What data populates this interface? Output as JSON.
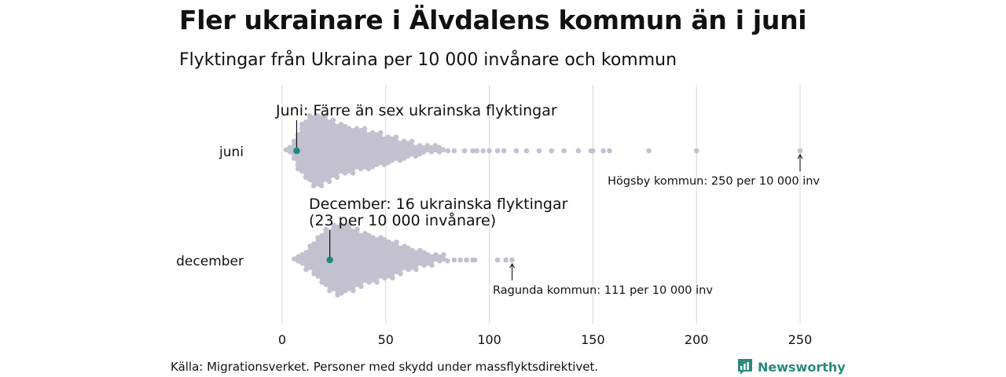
{
  "title": "Fler ukrainare i Älvdalens kommun än i juni",
  "subtitle": "Flyktingar från Ukraina per 10 000 invånare och kommun",
  "source": "Källa: Migrationsverket. Personer med skydd under massflyktsdirektivet.",
  "brand": "Newsworthy",
  "colors": {
    "dot": "#c3c1d0",
    "highlight": "#1f8a78",
    "grid": "#d6d6d6",
    "brand": "#2a8a7c"
  },
  "chart_data": {
    "type": "scatter",
    "subtype": "beeswarm",
    "xlim": [
      0,
      250
    ],
    "xticks": [
      "0",
      "50",
      "100",
      "150",
      "200",
      "250"
    ],
    "rows": [
      {
        "label": "juni",
        "highlight": {
          "value": 7
        },
        "annotation": {
          "lines": [
            "Juni: Färre än sex ukrainska flyktingar"
          ]
        },
        "max_point": {
          "value": 250,
          "label": "Högsby kommun: 250 per 10 000 inv"
        },
        "outliers": [
          80,
          83,
          88,
          92,
          94,
          97,
          100,
          104,
          107,
          113,
          118,
          124,
          130,
          136,
          143,
          149,
          150,
          155,
          158,
          177,
          200,
          250
        ]
      },
      {
        "label": "december",
        "highlight": {
          "value": 23
        },
        "annotation": {
          "lines": [
            "December: 16 ukrainska flyktingar",
            "(23 per 10 000 invånare)"
          ]
        },
        "max_point": {
          "value": 111,
          "label": "Ragunda kommun: 111 per 10 000 inv"
        },
        "outliers": [
          83,
          86,
          89,
          92,
          93,
          104,
          108,
          111
        ]
      }
    ]
  }
}
